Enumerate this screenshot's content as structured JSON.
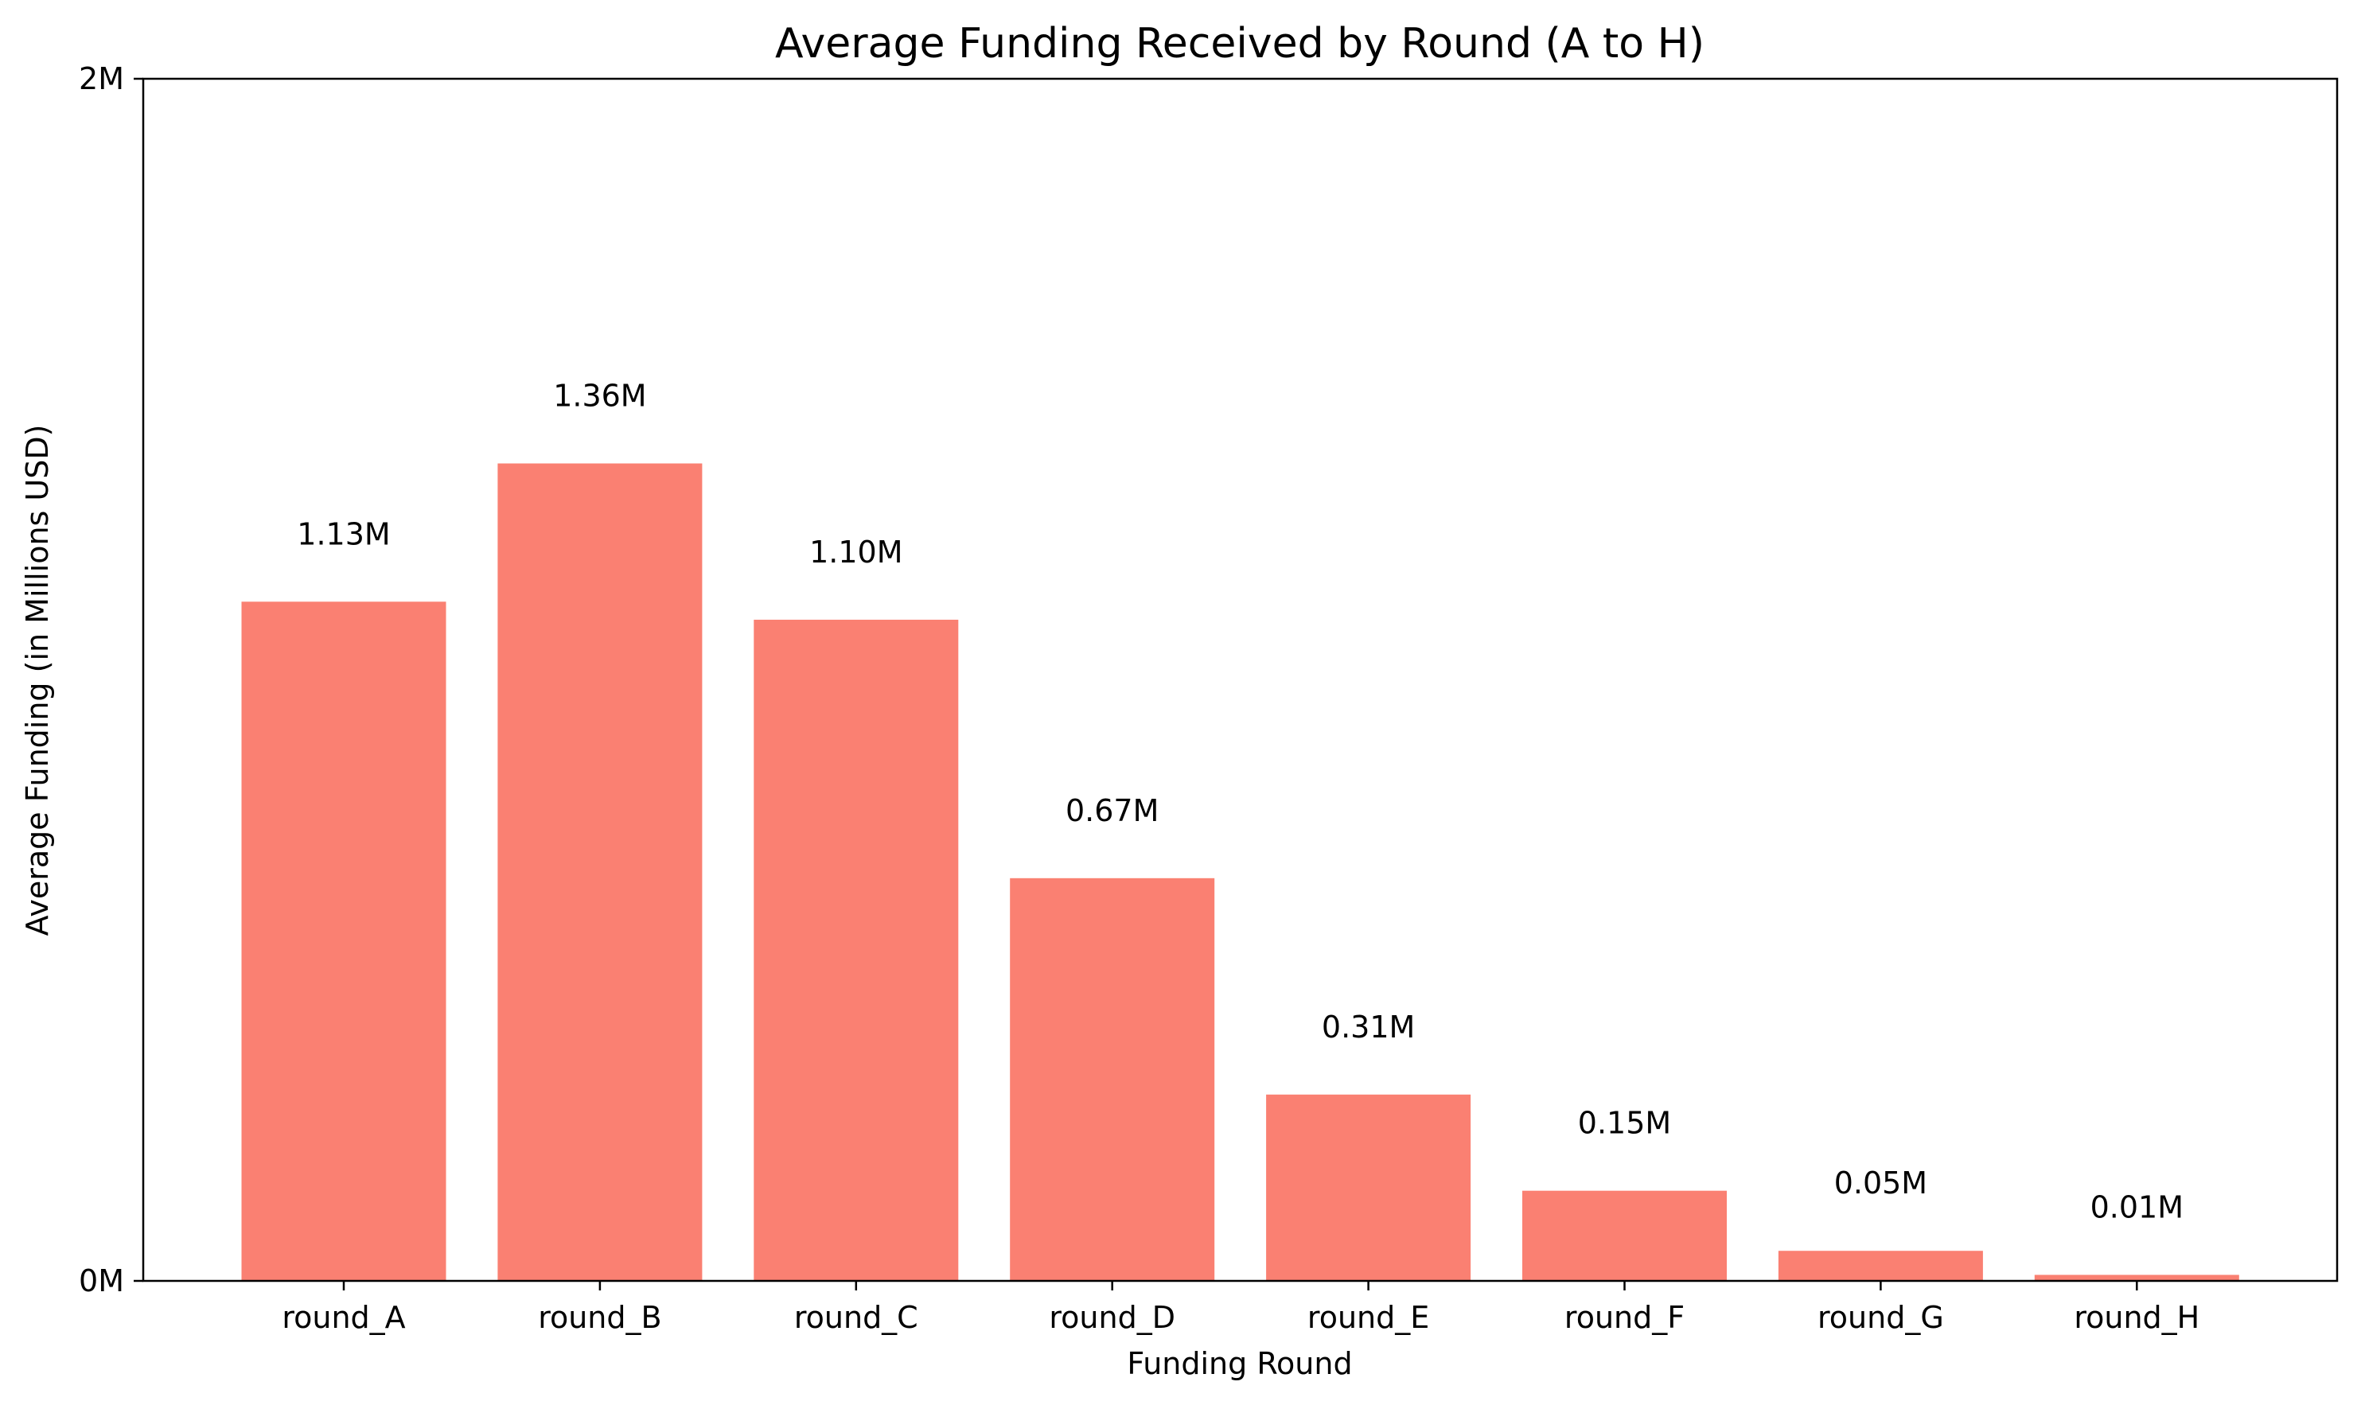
{
  "chart_data": {
    "type": "bar",
    "title": "Average Funding Received by Round (A to H)",
    "xlabel": "Funding Round",
    "ylabel": "Average Funding (in Millions USD)",
    "categories": [
      "round_A",
      "round_B",
      "round_C",
      "round_D",
      "round_E",
      "round_F",
      "round_G",
      "round_H"
    ],
    "values": [
      1.13,
      1.36,
      1.1,
      0.67,
      0.31,
      0.15,
      0.05,
      0.01
    ],
    "data_labels": [
      "1.13M",
      "1.36M",
      "1.10M",
      "0.67M",
      "0.31M",
      "0.15M",
      "0.05M",
      "0.01M"
    ],
    "ylim": [
      0,
      2
    ],
    "yticks": [
      0,
      2
    ],
    "ytick_labels": [
      "0M",
      "2M"
    ],
    "bar_color": "#fa8072",
    "grid": false,
    "legend": "none"
  }
}
